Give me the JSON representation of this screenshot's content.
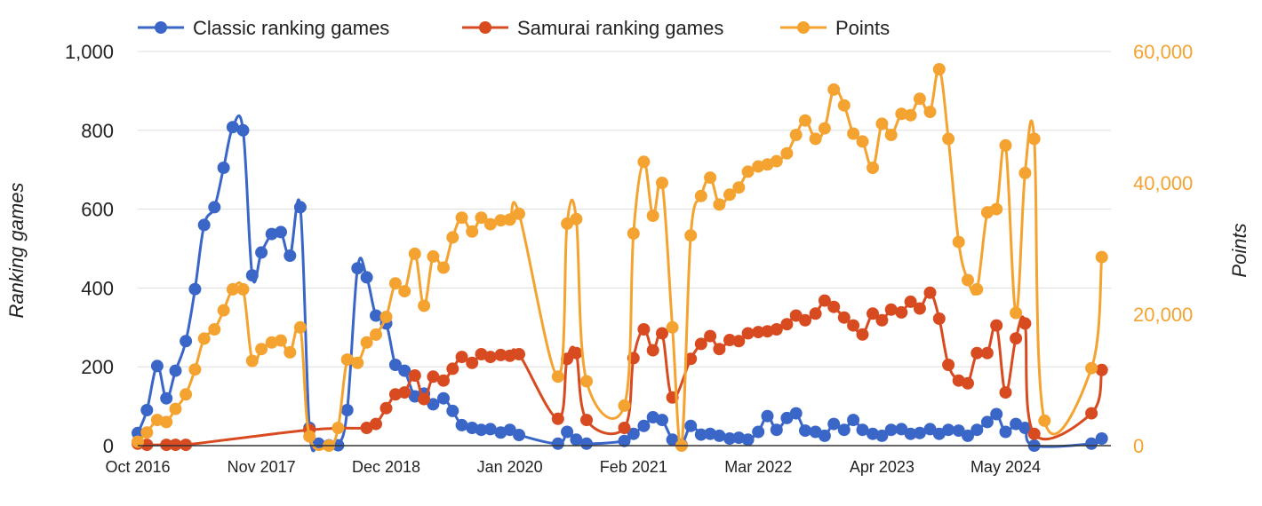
{
  "chart_data": {
    "type": "line",
    "legend_position": "top",
    "grid": "horizontal",
    "x_axis": {
      "range": [
        2016.75,
        2025.25
      ],
      "tick_labels": [
        {
          "x": 2016.75,
          "label": "Oct 2016"
        },
        {
          "x": 2017.83,
          "label": "Nov 2017"
        },
        {
          "x": 2018.92,
          "label": "Dec 2018"
        },
        {
          "x": 2020.0,
          "label": "Jan 2020"
        },
        {
          "x": 2021.08,
          "label": "Feb 2021"
        },
        {
          "x": 2022.17,
          "label": "Mar 2022"
        },
        {
          "x": 2023.25,
          "label": "Apr 2023"
        },
        {
          "x": 2024.33,
          "label": "May 2024"
        }
      ]
    },
    "y_left": {
      "label": "Ranking games",
      "range": [
        0,
        1000
      ],
      "ticks": [
        {
          "v": 0,
          "label": "0"
        },
        {
          "v": 200,
          "label": "200"
        },
        {
          "v": 400,
          "label": "400"
        },
        {
          "v": 600,
          "label": "600"
        },
        {
          "v": 800,
          "label": "800"
        },
        {
          "v": 1000,
          "label": "1,000"
        }
      ]
    },
    "y_right": {
      "label": "Points",
      "range": [
        0,
        60000
      ],
      "color": "#f4a330",
      "ticks": [
        {
          "v": 0,
          "label": "0"
        },
        {
          "v": 20000,
          "label": "20,000"
        },
        {
          "v": 40000,
          "label": "40,000"
        },
        {
          "v": 60000,
          "label": "60,000"
        }
      ]
    },
    "series": [
      {
        "name": "Classic ranking games",
        "color": "#3a66c8",
        "axis": "left",
        "points": [
          [
            2016.75,
            32
          ],
          [
            2016.83,
            90
          ],
          [
            2016.92,
            202
          ],
          [
            2017.0,
            120
          ],
          [
            2017.08,
            190
          ],
          [
            2017.17,
            265
          ],
          [
            2017.25,
            397
          ],
          [
            2017.33,
            560
          ],
          [
            2017.42,
            605
          ],
          [
            2017.5,
            705
          ],
          [
            2017.58,
            808
          ],
          [
            2017.67,
            800
          ],
          [
            2017.75,
            432
          ],
          [
            2017.83,
            490
          ],
          [
            2017.92,
            537
          ],
          [
            2018.0,
            542
          ],
          [
            2018.08,
            482
          ],
          [
            2018.17,
            605
          ],
          [
            2018.25,
            45
          ],
          [
            2018.33,
            5
          ],
          [
            2018.42,
            1
          ],
          [
            2018.5,
            1
          ],
          [
            2018.58,
            90
          ],
          [
            2018.67,
            450
          ],
          [
            2018.75,
            427
          ],
          [
            2018.83,
            330
          ],
          [
            2018.92,
            310
          ],
          [
            2019.0,
            205
          ],
          [
            2019.08,
            190
          ],
          [
            2019.17,
            125
          ],
          [
            2019.25,
            132
          ],
          [
            2019.33,
            105
          ],
          [
            2019.42,
            120
          ],
          [
            2019.5,
            88
          ],
          [
            2019.58,
            52
          ],
          [
            2019.67,
            45
          ],
          [
            2019.75,
            40
          ],
          [
            2019.83,
            42
          ],
          [
            2019.92,
            33
          ],
          [
            2020.0,
            40
          ],
          [
            2020.08,
            27
          ],
          [
            2020.42,
            5
          ],
          [
            2020.5,
            35
          ],
          [
            2020.58,
            15
          ],
          [
            2020.67,
            5
          ],
          [
            2021.0,
            12
          ],
          [
            2021.08,
            30
          ],
          [
            2021.17,
            50
          ],
          [
            2021.25,
            72
          ],
          [
            2021.33,
            65
          ],
          [
            2021.42,
            15
          ],
          [
            2021.5,
            2
          ],
          [
            2021.58,
            50
          ],
          [
            2021.67,
            28
          ],
          [
            2021.75,
            30
          ],
          [
            2021.83,
            25
          ],
          [
            2021.92,
            18
          ],
          [
            2022.0,
            20
          ],
          [
            2022.08,
            15
          ],
          [
            2022.17,
            35
          ],
          [
            2022.25,
            75
          ],
          [
            2022.33,
            40
          ],
          [
            2022.42,
            70
          ],
          [
            2022.5,
            82
          ],
          [
            2022.58,
            38
          ],
          [
            2022.67,
            35
          ],
          [
            2022.75,
            25
          ],
          [
            2022.83,
            55
          ],
          [
            2022.92,
            40
          ],
          [
            2023.0,
            65
          ],
          [
            2023.08,
            40
          ],
          [
            2023.17,
            30
          ],
          [
            2023.25,
            25
          ],
          [
            2023.33,
            40
          ],
          [
            2023.42,
            42
          ],
          [
            2023.5,
            30
          ],
          [
            2023.58,
            32
          ],
          [
            2023.67,
            42
          ],
          [
            2023.75,
            30
          ],
          [
            2023.83,
            40
          ],
          [
            2023.92,
            38
          ],
          [
            2024.0,
            25
          ],
          [
            2024.08,
            40
          ],
          [
            2024.17,
            60
          ],
          [
            2024.25,
            80
          ],
          [
            2024.33,
            35
          ],
          [
            2024.42,
            55
          ],
          [
            2024.5,
            45
          ],
          [
            2024.58,
            0
          ],
          [
            2025.08,
            5
          ],
          [
            2025.17,
            18
          ]
        ]
      },
      {
        "name": "Samurai ranking games",
        "color": "#d84b20",
        "axis": "left",
        "points": [
          [
            2016.75,
            5
          ],
          [
            2016.83,
            2
          ],
          [
            2017.0,
            2
          ],
          [
            2017.08,
            2
          ],
          [
            2017.17,
            2
          ],
          [
            2018.25,
            40
          ],
          [
            2018.75,
            45
          ],
          [
            2018.83,
            55
          ],
          [
            2018.92,
            95
          ],
          [
            2019.0,
            130
          ],
          [
            2019.08,
            135
          ],
          [
            2019.17,
            178
          ],
          [
            2019.25,
            118
          ],
          [
            2019.33,
            175
          ],
          [
            2019.42,
            165
          ],
          [
            2019.5,
            195
          ],
          [
            2019.58,
            225
          ],
          [
            2019.67,
            210
          ],
          [
            2019.75,
            232
          ],
          [
            2019.83,
            225
          ],
          [
            2019.92,
            230
          ],
          [
            2020.0,
            228
          ],
          [
            2020.08,
            232
          ],
          [
            2020.42,
            68
          ],
          [
            2020.5,
            220
          ],
          [
            2020.58,
            235
          ],
          [
            2020.67,
            65
          ],
          [
            2021.0,
            45
          ],
          [
            2021.08,
            222
          ],
          [
            2021.17,
            295
          ],
          [
            2021.25,
            242
          ],
          [
            2021.33,
            285
          ],
          [
            2021.42,
            122
          ],
          [
            2021.58,
            220
          ],
          [
            2021.67,
            258
          ],
          [
            2021.75,
            278
          ],
          [
            2021.83,
            245
          ],
          [
            2021.92,
            268
          ],
          [
            2022.0,
            265
          ],
          [
            2022.08,
            285
          ],
          [
            2022.17,
            288
          ],
          [
            2022.25,
            290
          ],
          [
            2022.33,
            295
          ],
          [
            2022.42,
            308
          ],
          [
            2022.5,
            330
          ],
          [
            2022.58,
            318
          ],
          [
            2022.67,
            335
          ],
          [
            2022.75,
            368
          ],
          [
            2022.83,
            352
          ],
          [
            2022.92,
            325
          ],
          [
            2023.0,
            305
          ],
          [
            2023.08,
            282
          ],
          [
            2023.17,
            335
          ],
          [
            2023.25,
            318
          ],
          [
            2023.33,
            345
          ],
          [
            2023.42,
            338
          ],
          [
            2023.5,
            365
          ],
          [
            2023.58,
            348
          ],
          [
            2023.67,
            388
          ],
          [
            2023.75,
            322
          ],
          [
            2023.83,
            205
          ],
          [
            2023.92,
            165
          ],
          [
            2024.0,
            158
          ],
          [
            2024.08,
            235
          ],
          [
            2024.17,
            235
          ],
          [
            2024.25,
            305
          ],
          [
            2024.33,
            135
          ],
          [
            2024.42,
            272
          ],
          [
            2024.5,
            310
          ],
          [
            2024.58,
            30
          ],
          [
            2025.08,
            82
          ],
          [
            2025.17,
            192
          ]
        ]
      },
      {
        "name": "Points",
        "color": "#f4a330",
        "axis": "right",
        "points": [
          [
            2016.75,
            600
          ],
          [
            2016.83,
            2000
          ],
          [
            2016.92,
            3900
          ],
          [
            2017.0,
            3600
          ],
          [
            2017.08,
            5600
          ],
          [
            2017.17,
            7800
          ],
          [
            2017.25,
            11600
          ],
          [
            2017.33,
            16300
          ],
          [
            2017.42,
            17700
          ],
          [
            2017.5,
            20600
          ],
          [
            2017.58,
            23800
          ],
          [
            2017.67,
            23800
          ],
          [
            2017.75,
            12900
          ],
          [
            2017.83,
            14700
          ],
          [
            2017.92,
            15700
          ],
          [
            2018.0,
            16000
          ],
          [
            2018.08,
            14200
          ],
          [
            2018.17,
            18000
          ],
          [
            2018.25,
            1400
          ],
          [
            2018.42,
            0
          ],
          [
            2018.5,
            2700
          ],
          [
            2018.58,
            13100
          ],
          [
            2018.67,
            12600
          ],
          [
            2018.75,
            15700
          ],
          [
            2018.83,
            16900
          ],
          [
            2018.92,
            19600
          ],
          [
            2019.0,
            24700
          ],
          [
            2019.08,
            23500
          ],
          [
            2019.17,
            29200
          ],
          [
            2019.25,
            21300
          ],
          [
            2019.33,
            28800
          ],
          [
            2019.42,
            27100
          ],
          [
            2019.5,
            31700
          ],
          [
            2019.58,
            34700
          ],
          [
            2019.67,
            32600
          ],
          [
            2019.75,
            34700
          ],
          [
            2019.83,
            33700
          ],
          [
            2019.92,
            34300
          ],
          [
            2020.0,
            34400
          ],
          [
            2020.08,
            35300
          ],
          [
            2020.42,
            10500
          ],
          [
            2020.5,
            33800
          ],
          [
            2020.58,
            34500
          ],
          [
            2020.67,
            9800
          ],
          [
            2021.0,
            6100
          ],
          [
            2021.08,
            32300
          ],
          [
            2021.17,
            43200
          ],
          [
            2021.25,
            35000
          ],
          [
            2021.33,
            40000
          ],
          [
            2021.42,
            18000
          ],
          [
            2021.5,
            0
          ],
          [
            2021.58,
            32000
          ],
          [
            2021.67,
            38000
          ],
          [
            2021.75,
            40800
          ],
          [
            2021.83,
            36700
          ],
          [
            2021.92,
            38200
          ],
          [
            2022.0,
            39300
          ],
          [
            2022.08,
            41700
          ],
          [
            2022.17,
            42500
          ],
          [
            2022.25,
            42800
          ],
          [
            2022.33,
            43300
          ],
          [
            2022.42,
            44500
          ],
          [
            2022.5,
            47300
          ],
          [
            2022.58,
            49500
          ],
          [
            2022.67,
            46700
          ],
          [
            2022.75,
            48300
          ],
          [
            2022.83,
            54200
          ],
          [
            2022.92,
            51800
          ],
          [
            2023.0,
            47500
          ],
          [
            2023.08,
            46300
          ],
          [
            2023.17,
            42300
          ],
          [
            2023.25,
            49000
          ],
          [
            2023.33,
            47300
          ],
          [
            2023.42,
            50500
          ],
          [
            2023.5,
            50300
          ],
          [
            2023.58,
            52800
          ],
          [
            2023.67,
            50800
          ],
          [
            2023.75,
            57300
          ],
          [
            2023.83,
            46700
          ],
          [
            2023.92,
            31000
          ],
          [
            2024.0,
            25200
          ],
          [
            2024.08,
            23800
          ],
          [
            2024.17,
            35500
          ],
          [
            2024.25,
            36000
          ],
          [
            2024.33,
            45700
          ],
          [
            2024.42,
            20200
          ],
          [
            2024.5,
            41500
          ],
          [
            2024.58,
            46700
          ],
          [
            2024.67,
            3800
          ],
          [
            2025.08,
            11800
          ],
          [
            2025.17,
            28700
          ]
        ]
      }
    ]
  }
}
